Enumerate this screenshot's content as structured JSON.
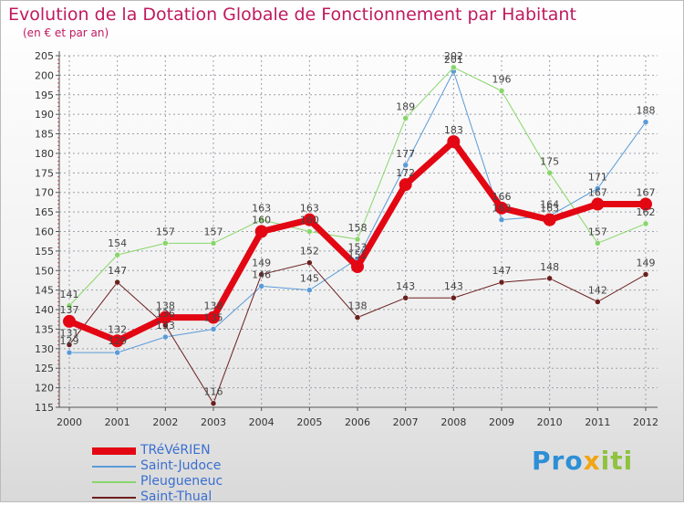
{
  "title": "Evolution de la Dotation Globale de Fonctionnement par Habitant",
  "subtitle": "(en € et par an)",
  "logo": {
    "part1": "Pro",
    "part2": "x",
    "part3": "iti"
  },
  "chart_data": {
    "type": "line",
    "title": "Evolution de la Dotation Globale de Fonctionnement par Habitant",
    "subtitle": "(en € et par an)",
    "xlabel": "",
    "ylabel": "",
    "x": [
      "2000",
      "2001",
      "2002",
      "2003",
      "2004",
      "2005",
      "2006",
      "2007",
      "2008",
      "2009",
      "2010",
      "2011",
      "2012"
    ],
    "ylim": [
      115,
      205
    ],
    "yticks": [
      115,
      120,
      125,
      130,
      135,
      140,
      145,
      150,
      155,
      160,
      165,
      170,
      175,
      180,
      185,
      190,
      195,
      200,
      205
    ],
    "grid": true,
    "legend_position": "bottom-left",
    "series": [
      {
        "name": "TRéVéRIEN",
        "color": "#e30613",
        "width": 7,
        "values": [
          137,
          132,
          138,
          138,
          160,
          163,
          151,
          172,
          183,
          166,
          163,
          167,
          167
        ]
      },
      {
        "name": "Saint-Judoce",
        "color": "#5a9bd8",
        "width": 1,
        "values": [
          129,
          129,
          133,
          135,
          146,
          145,
          153,
          177,
          201,
          163,
          164,
          171,
          188
        ]
      },
      {
        "name": "Pleugueneuc",
        "color": "#88d66a",
        "width": 1,
        "values": [
          141,
          154,
          157,
          157,
          163,
          160,
          158,
          189,
          202,
          196,
          175,
          157,
          162
        ]
      },
      {
        "name": "Saint-Thual",
        "color": "#6b1f1f",
        "width": 1,
        "values": [
          131,
          147,
          136,
          116,
          149,
          152,
          138,
          143,
          143,
          147,
          148,
          142,
          149
        ]
      }
    ]
  }
}
